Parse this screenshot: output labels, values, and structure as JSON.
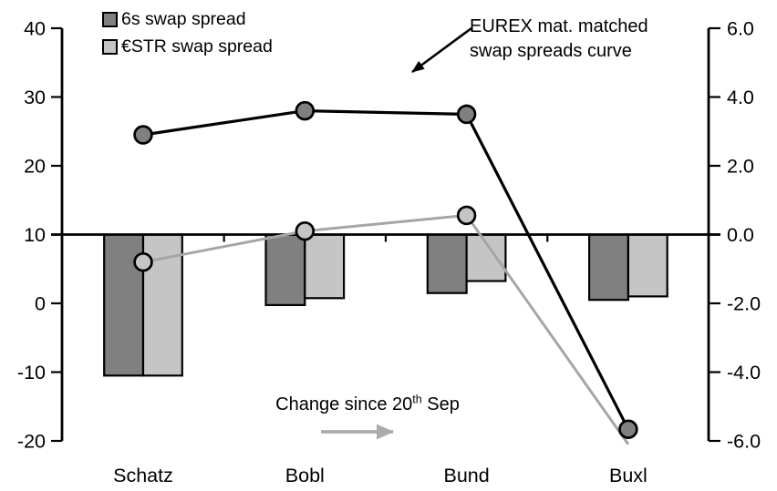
{
  "chart_data": {
    "type": "combo",
    "description": "Dual-axis chart: lines with circle markers = EUREX maturity-matched swap spread levels (left axis, bp); bars = change since 20th Sep (right axis)",
    "categories": [
      "Schatz",
      "Bobl",
      "Bund",
      "Buxl"
    ],
    "left_axis": {
      "ticks": [
        "40",
        "30",
        "20",
        "10",
        "0",
        "-10",
        "-20"
      ],
      "min": -20,
      "max": 40
    },
    "right_axis": {
      "ticks": [
        "6.0",
        "4.0",
        "2.0",
        "0.0",
        "-2.0",
        "-4.0",
        "-6.0"
      ],
      "min": -6,
      "max": 6
    },
    "grid": "none",
    "background": "#FFFFFF",
    "legend": [
      {
        "label": "6s swap spread",
        "color": "#808080"
      },
      {
        "label": "€STR swap spread",
        "color": "#C5C5C5"
      }
    ],
    "bar_series": [
      {
        "name": "6s swap spread (change since 20 Sep, rhs)",
        "axis": "right",
        "color": "#808080",
        "values": [
          -4.1,
          -2.05,
          -1.7,
          -1.9
        ]
      },
      {
        "name": "€STR swap spread (change since 20 Sep, rhs)",
        "axis": "right",
        "color": "#C5C5C5",
        "values": [
          -4.1,
          -1.85,
          -1.35,
          -1.8
        ]
      }
    ],
    "line_series": [
      {
        "name": "6s swap spread curve (level, lhs)",
        "axis": "left",
        "color": "#000000",
        "marker_fill": "#808080",
        "values": [
          24.5,
          28.0,
          27.5,
          -18.3
        ],
        "marker_visible": [
          true,
          true,
          true,
          true
        ]
      },
      {
        "name": "€STR swap spread curve (level, lhs)",
        "axis": "left",
        "color": "#A6A6A6",
        "marker_fill": "#C5C5C5",
        "values": [
          6.0,
          10.5,
          12.8,
          -20.5
        ],
        "marker_visible": [
          true,
          true,
          true,
          false
        ]
      }
    ],
    "annotations": {
      "curve": {
        "line1": "EUREX mat. matched",
        "line2": "swap spreads curve",
        "arrow_color": "#000000"
      },
      "change": {
        "prefix": "Change since 20",
        "sup": "th",
        "suffix": " Sep",
        "arrow_color": "#ABABAB"
      }
    },
    "axis_color": "#000000",
    "zero_line_color": "#000000"
  }
}
